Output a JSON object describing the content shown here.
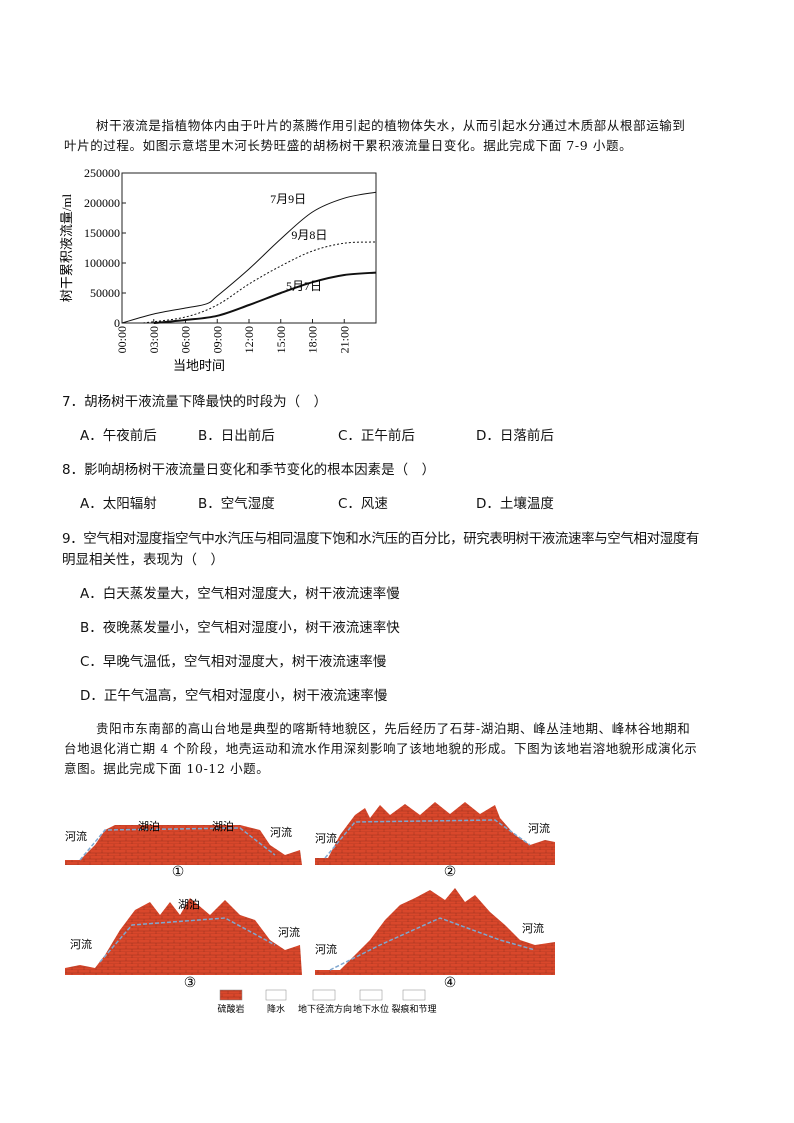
{
  "passage1": {
    "line1": "树干液流是指植物体内由于叶片的蒸腾作用引起的植物体失水，从而引起水分通过木质部从根部运输到",
    "line2": "叶片的过程。如图示意塔里木河长势旺盛的胡杨树干累积液流量日变化。据此完成下面 7-9 小题。"
  },
  "chart_data": {
    "type": "line",
    "title": "",
    "xlabel": "当地时间",
    "ylabel": "树干累积液流量/ml",
    "xlim": [
      0,
      24
    ],
    "ylim": [
      0,
      250000
    ],
    "x_ticks": [
      "00:00",
      "03:00",
      "06:00",
      "09:00",
      "12:00",
      "15:00",
      "18:00",
      "21:00"
    ],
    "y_ticks": [
      "0",
      "50000",
      "100000",
      "150000",
      "200000",
      "250000"
    ],
    "grid": false,
    "series": [
      {
        "name": "7月9日",
        "style": "thin-solid",
        "x": [
          0,
          3,
          6,
          8,
          9,
          12,
          15,
          18,
          21,
          24
        ],
        "y": [
          0,
          15000,
          25000,
          32000,
          45000,
          90000,
          140000,
          185000,
          208000,
          218000
        ]
      },
      {
        "name": "9月8日",
        "style": "dotted",
        "x": [
          2,
          6,
          9,
          12,
          15,
          18,
          21,
          24
        ],
        "y": [
          0,
          10000,
          30000,
          65000,
          95000,
          120000,
          133000,
          135000
        ]
      },
      {
        "name": "5月7日",
        "style": "thick-solid",
        "x": [
          3,
          6,
          9,
          12,
          15,
          18,
          21,
          24
        ],
        "y": [
          0,
          5000,
          12000,
          30000,
          50000,
          68000,
          80000,
          84000
        ]
      }
    ]
  },
  "questions": [
    {
      "stem": "7．胡杨树干液流量下降最快的时段为（　）",
      "options": [
        "A．午夜前后",
        "B．日出前后",
        "C．正午前后",
        "D．日落前后"
      ]
    },
    {
      "stem": "8．影响胡杨树干液流量日变化和季节变化的根本因素是（　）",
      "options": [
        "A．太阳辐射",
        "B．空气湿度",
        "C．风速",
        "D．土壤温度"
      ]
    },
    {
      "stem1": "9．空气相对湿度指空气中水汽压与相同温度下饱和水汽压的百分比，研究表明树干液流速率与空气相对湿度有",
      "stem2": "明显相关性，表现为（　）",
      "options": [
        "A．白天蒸发量大，空气相对湿度大，树干液流速率慢",
        "B．夜晚蒸发量小，空气相对湿度小，树干液流速率快",
        "C．早晚气温低，空气相对湿度大，树干液流速率慢",
        "D．正午气温高，空气相对湿度小，树干液流速率慢"
      ]
    }
  ],
  "passage2": {
    "line1": "贵阳市东南部的高山台地是典型的喀斯特地貌区，先后经历了石芽-湖泊期、峰丛洼地期、峰林谷地期和",
    "line2": "台地退化消亡期 4 个阶段，地壳运动和流水作用深刻影响了该地地貌的形成。下图为该地岩溶地貌形成演化示",
    "line3": "意图。据此完成下面 10-12 小题。"
  },
  "diagram": {
    "panels": [
      {
        "num": "①",
        "labels": [
          "河流",
          "湖泊",
          "湖泊",
          "河流"
        ]
      },
      {
        "num": "②",
        "labels": [
          "河流",
          "河流"
        ]
      },
      {
        "num": "③",
        "labels": [
          "河流",
          "湖泊",
          "河流"
        ]
      },
      {
        "num": "④",
        "labels": [
          "河流",
          "河流"
        ]
      }
    ],
    "legend": [
      "硫酸岩",
      "降水",
      "地下径流方向",
      "地下水位",
      "裂痕和节理"
    ],
    "colors": {
      "rock": "#d9472b",
      "water": "#7fa7cf"
    }
  }
}
